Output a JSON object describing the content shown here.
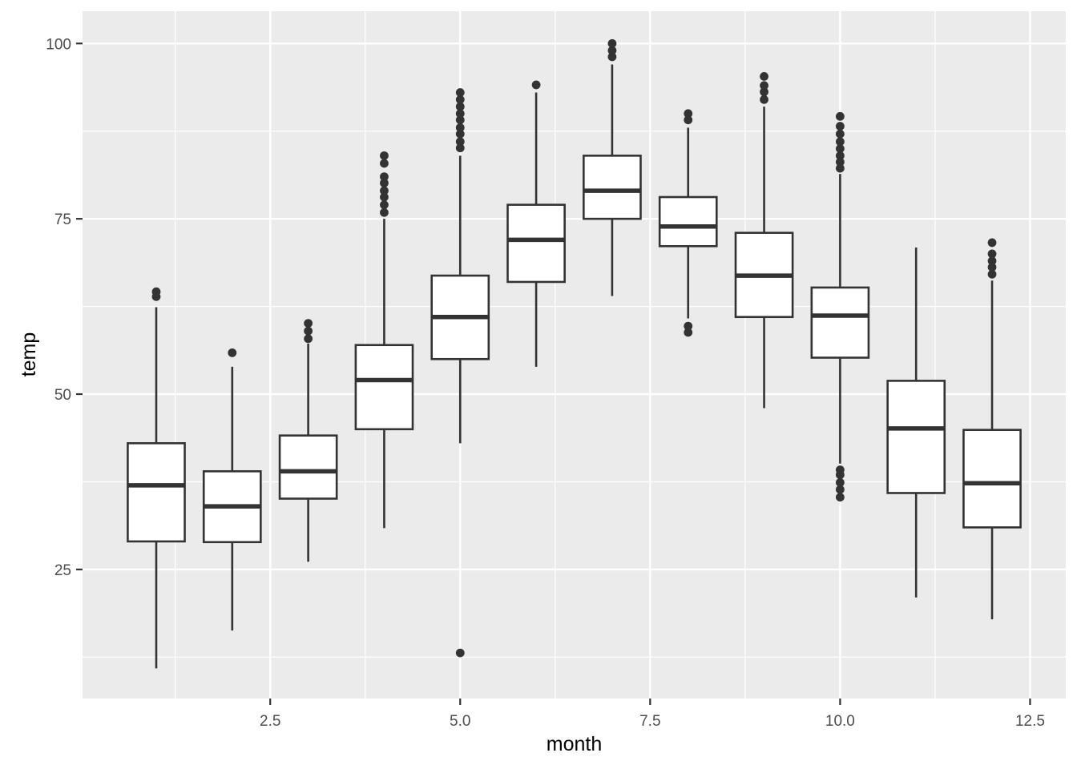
{
  "figure": {
    "background": "#FFFFFF",
    "panel_background": "#EBEBEB",
    "grid_color": "#FFFFFF",
    "box_stroke_color": "#333333",
    "box_fill_color": "#FFFFFF",
    "outlier_color": "#333333",
    "tick_mark_color": "#333333",
    "tick_label_color": "#4D4D4D",
    "axis_title_color": "#000000"
  },
  "chart_data": {
    "type": "boxplot",
    "title": "",
    "xlabel": "month",
    "ylabel": "temp",
    "grid": true,
    "legend": false,
    "xlim": [
      0.03,
      12.97
    ],
    "ylim": [
      6.6,
      104.6
    ],
    "box_width": 0.75,
    "x_ticks": {
      "values": [
        2.5,
        5.0,
        7.5,
        10.0,
        12.5
      ],
      "labels": [
        "2.5",
        "5.0",
        "7.5",
        "10.0",
        "12.5"
      ]
    },
    "y_ticks": {
      "values": [
        25,
        50,
        75,
        100
      ],
      "labels": [
        "25",
        "50",
        "75",
        "100"
      ]
    },
    "series": [
      {
        "month": 1,
        "lower": 10.9,
        "q1": 29.0,
        "median": 37.0,
        "q3": 43.0,
        "upper": 62.4,
        "outliers": [
          63.9,
          64.6
        ]
      },
      {
        "month": 2,
        "lower": 16.3,
        "q1": 28.9,
        "median": 34.0,
        "q3": 39.0,
        "upper": 53.9,
        "outliers": [
          55.9
        ]
      },
      {
        "month": 3,
        "lower": 26.1,
        "q1": 35.1,
        "median": 39.0,
        "q3": 44.1,
        "upper": 57.2,
        "outliers": [
          57.9,
          59.0,
          60.1
        ]
      },
      {
        "month": 4,
        "lower": 30.9,
        "q1": 45.0,
        "median": 52.0,
        "q3": 57.0,
        "upper": 75.0,
        "outliers": [
          75.9,
          77.0,
          78.1,
          79.0,
          80.1,
          81.0,
          82.9,
          84.0
        ]
      },
      {
        "month": 5,
        "lower": 43.0,
        "q1": 55.0,
        "median": 61.0,
        "q3": 66.9,
        "upper": 84.0,
        "outliers": [
          13.1,
          85.1,
          86.0,
          87.1,
          88.0,
          89.1,
          90.0,
          91.0,
          92.0,
          93.0
        ]
      },
      {
        "month": 6,
        "lower": 53.9,
        "q1": 66.0,
        "median": 72.0,
        "q3": 77.0,
        "upper": 93.0,
        "outliers": [
          94.1
        ]
      },
      {
        "month": 7,
        "lower": 64.0,
        "q1": 75.0,
        "median": 79.0,
        "q3": 84.0,
        "upper": 97.0,
        "outliers": [
          98.1,
          99.0,
          100.0
        ]
      },
      {
        "month": 8,
        "lower": 60.8,
        "q1": 71.1,
        "median": 73.9,
        "q3": 78.1,
        "upper": 88.0,
        "outliers": [
          58.8,
          59.7,
          89.1,
          90.0
        ]
      },
      {
        "month": 9,
        "lower": 48.0,
        "q1": 61.0,
        "median": 66.9,
        "q3": 73.0,
        "upper": 91.0,
        "outliers": [
          92.0,
          93.1,
          94.0,
          95.3
        ]
      },
      {
        "month": 10,
        "lower": 40.1,
        "q1": 55.2,
        "median": 61.2,
        "q3": 65.2,
        "upper": 81.4,
        "outliers": [
          35.3,
          36.4,
          37.4,
          38.5,
          39.2,
          82.2,
          83.1,
          84.0,
          85.0,
          86.0,
          87.1,
          88.2,
          89.6
        ]
      },
      {
        "month": 11,
        "lower": 21.0,
        "q1": 35.9,
        "median": 45.1,
        "q3": 51.9,
        "upper": 70.9,
        "outliers": []
      },
      {
        "month": 12,
        "lower": 17.9,
        "q1": 31.0,
        "median": 37.3,
        "q3": 44.9,
        "upper": 66.2,
        "outliers": [
          67.1,
          68.1,
          69.0,
          70.0,
          71.6
        ]
      }
    ]
  }
}
